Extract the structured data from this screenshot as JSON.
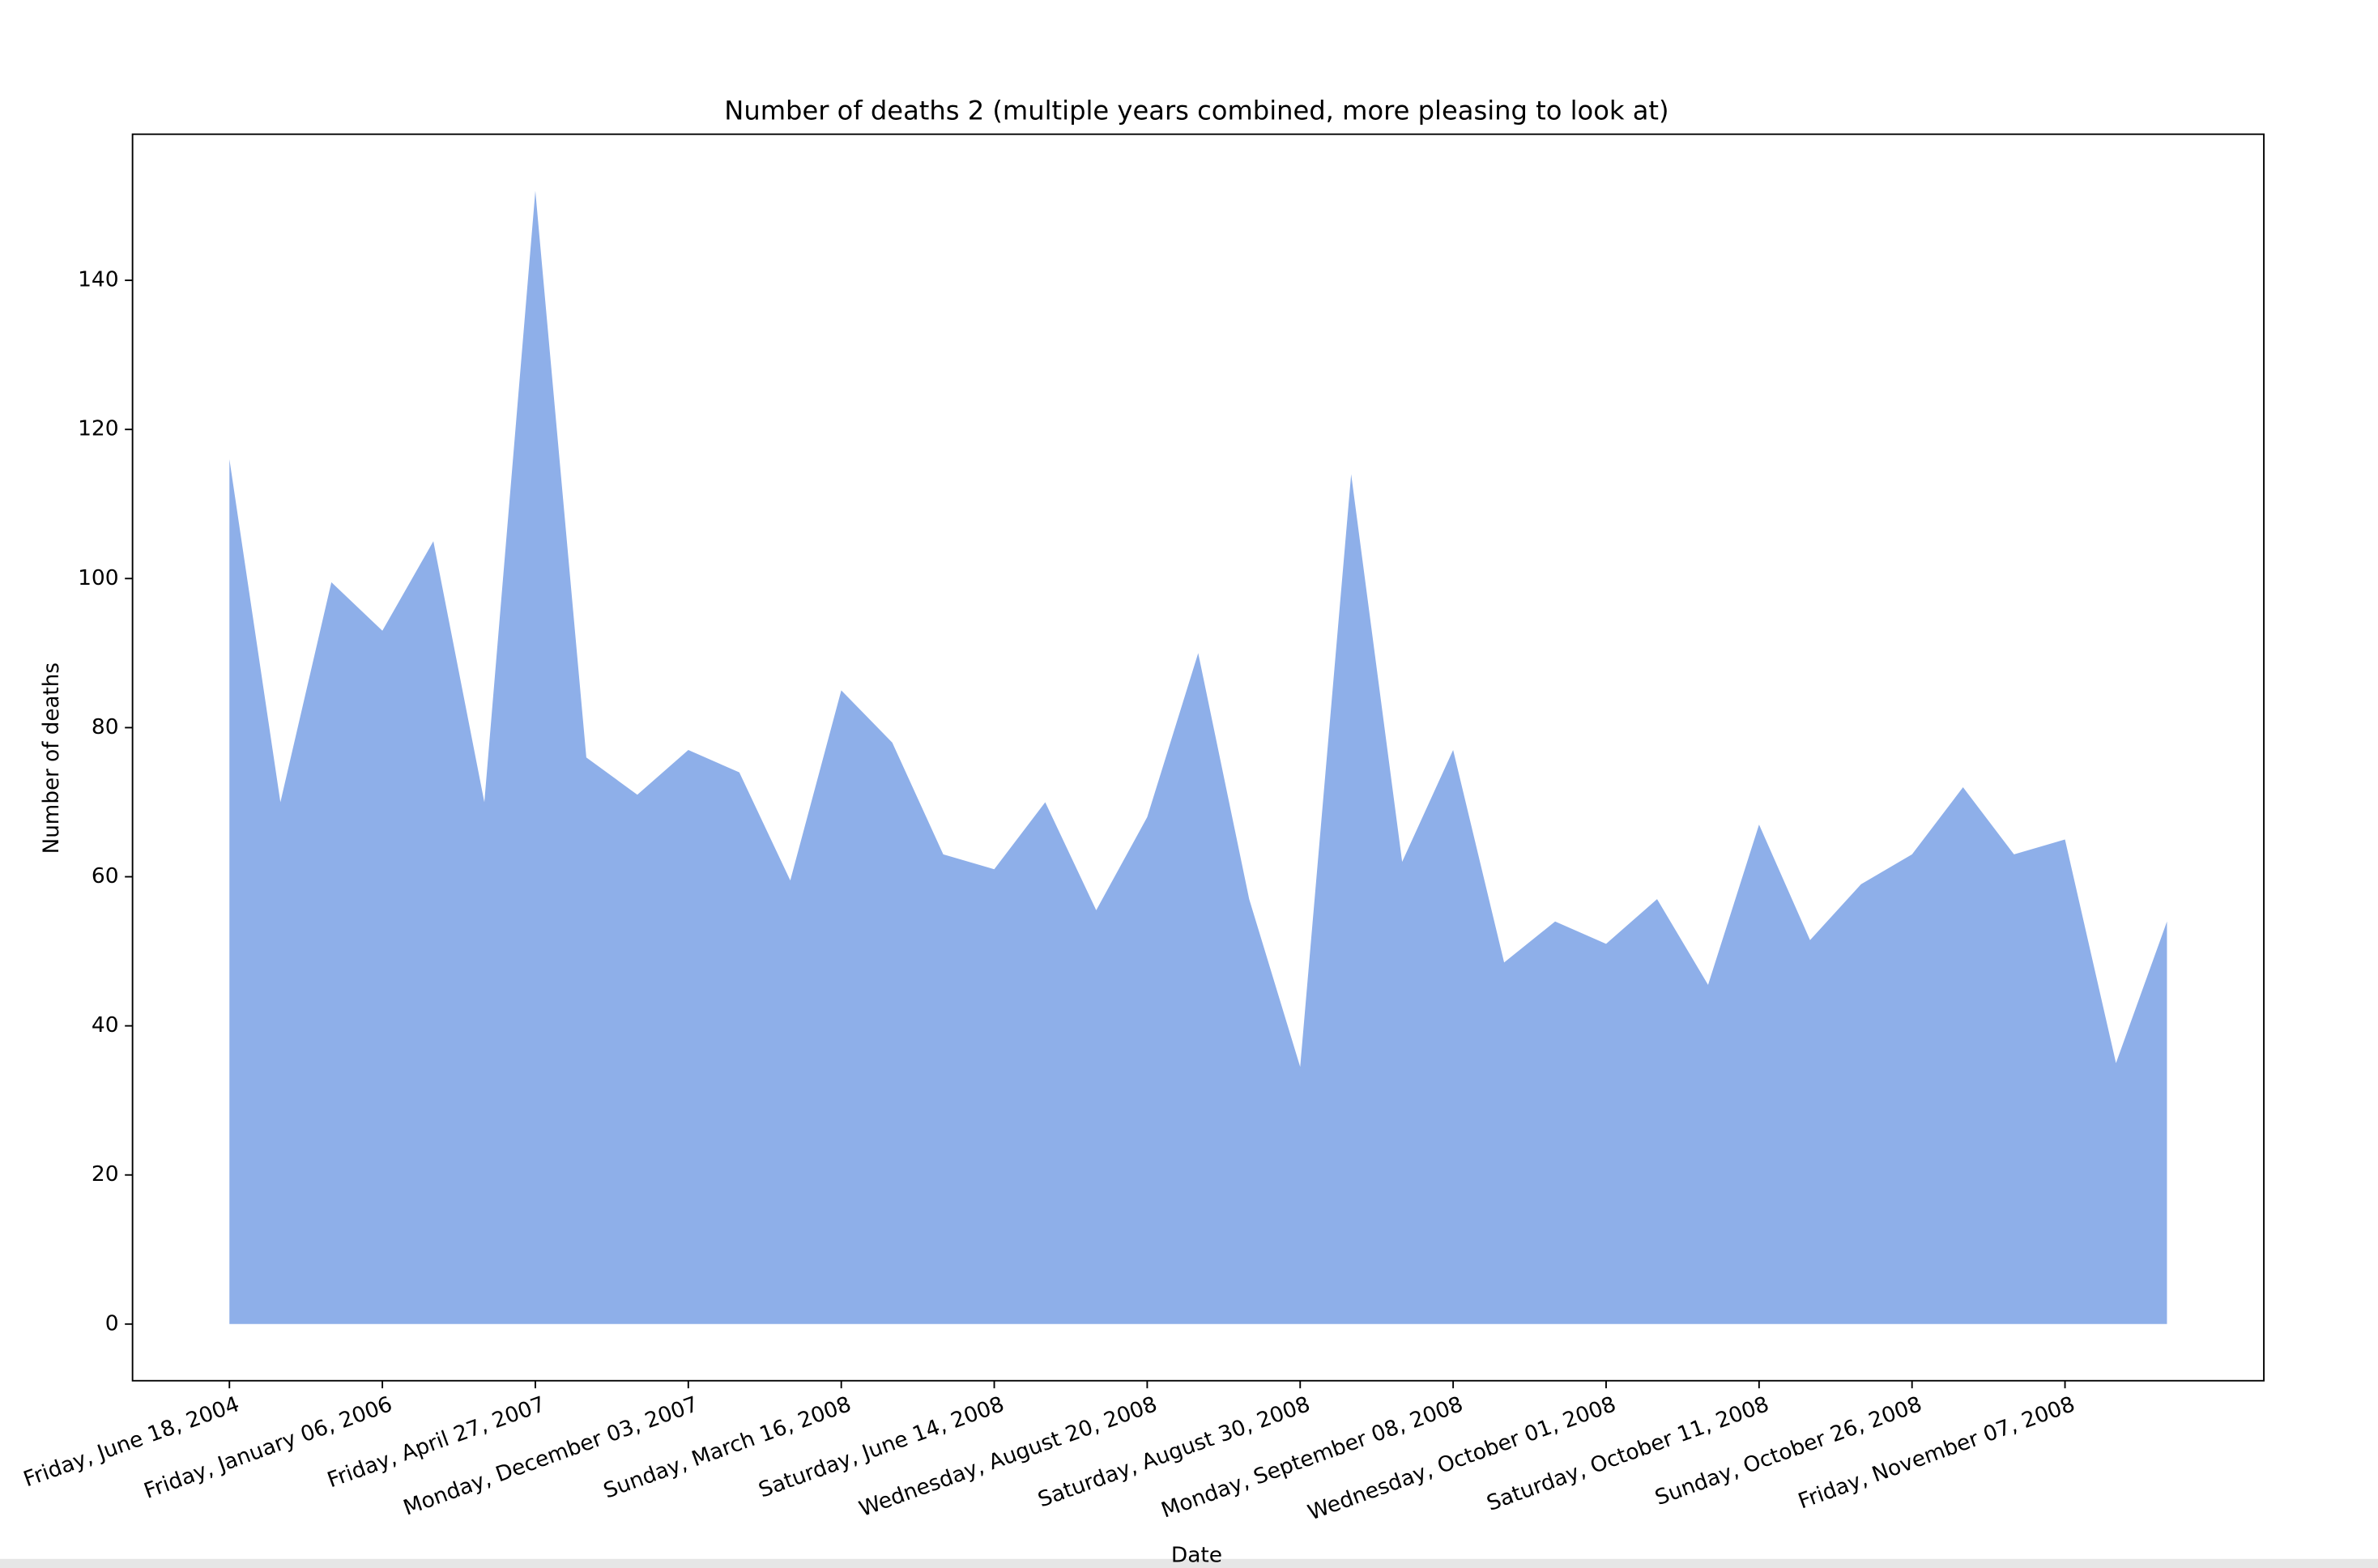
{
  "chart_data": {
    "type": "area",
    "title": "Number of deaths 2 (multiple years combined, more pleasing to look at)",
    "x_label": "Date",
    "y_label": "Number of deaths",
    "categories": [
      "Friday, June 18, 2004",
      null,
      null,
      "Friday, January 06, 2006",
      null,
      null,
      "Friday, April 27, 2007",
      null,
      null,
      "Monday, December 03, 2007",
      null,
      null,
      "Sunday, March 16, 2008",
      null,
      null,
      "Saturday, June 14, 2008",
      null,
      null,
      "Wednesday, August 20, 2008",
      null,
      null,
      "Saturday, August 30, 2008",
      null,
      null,
      "Monday, September 08, 2008",
      null,
      null,
      "Wednesday, October 01, 2008",
      null,
      null,
      "Saturday, October 11, 2008",
      null,
      null,
      "Sunday, October 26, 2008",
      null,
      null,
      "Friday, November 07, 2008",
      null,
      null
    ],
    "values": [
      116,
      70,
      99.5,
      93,
      105,
      70,
      152,
      76,
      71,
      77,
      74,
      59.5,
      85,
      78,
      63,
      61,
      70,
      55.5,
      68,
      90,
      57,
      34.5,
      114,
      62,
      77,
      48.5,
      54,
      51,
      57,
      45.5,
      67,
      51.5,
      59,
      63,
      72,
      63,
      65,
      35,
      54
    ],
    "color": "#8eafe9",
    "ylim": [
      -7.6,
      159.6
    ],
    "yticks": [
      0,
      20,
      40,
      60,
      80,
      100,
      120,
      140
    ]
  }
}
